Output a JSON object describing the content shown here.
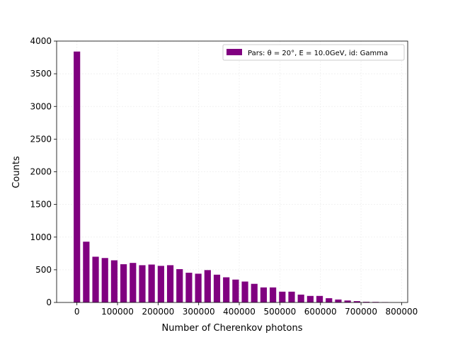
{
  "chart_data": {
    "type": "bar",
    "title": "",
    "xlabel": "Number of Cherenkov photons",
    "ylabel": "Counts",
    "xlim": [
      -50000,
      815000
    ],
    "ylim": [
      0,
      4000
    ],
    "xticks": [
      0,
      100000,
      200000,
      300000,
      400000,
      500000,
      600000,
      700000,
      800000
    ],
    "yticks": [
      0,
      500,
      1000,
      1500,
      2000,
      2500,
      3000,
      3500,
      4000
    ],
    "grid": true,
    "legend_position": "top-right",
    "bar_color": "#800080",
    "bin_width": 23000,
    "bar_width": 16000,
    "series": [
      {
        "label": "Pars: θ = 20°, E = 10.0GeV, id: Gamma",
        "x": [
          0,
          23000,
          46000,
          69000,
          92000,
          115000,
          138000,
          161000,
          184000,
          207000,
          230000,
          253000,
          276000,
          299000,
          322000,
          345000,
          368000,
          391000,
          414000,
          437000,
          460000,
          483000,
          506000,
          529000,
          552000,
          575000,
          598000,
          621000,
          644000,
          667000,
          690000,
          713000,
          736000,
          759000
        ],
        "values": [
          3840,
          930,
          700,
          680,
          645,
          585,
          605,
          570,
          580,
          560,
          570,
          510,
          455,
          440,
          495,
          425,
          385,
          350,
          320,
          285,
          230,
          230,
          165,
          165,
          120,
          100,
          100,
          65,
          45,
          30,
          20,
          10,
          8,
          5
        ]
      }
    ]
  }
}
